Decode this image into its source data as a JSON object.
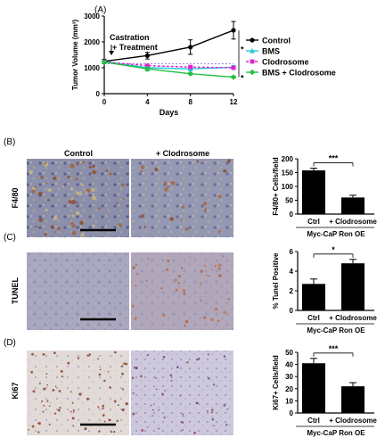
{
  "panels": {
    "a": "(A)",
    "b": "(B)",
    "c": "(C)",
    "d": "(D)"
  },
  "annotation": {
    "line1": "Castration",
    "line2": "+ Treatment"
  },
  "image_headers": {
    "control": "Control",
    "clodrosome": "+ Clodrosome"
  },
  "row_labels": {
    "b": "F4/80",
    "c": "TUNEL",
    "d": "Ki67"
  },
  "micrograph_colors": {
    "f480_control": "#8a8aa6",
    "f480_clod": "#9694b0",
    "tunel_control": "#a9a6bc",
    "tunel_clod": "#b7a9b9",
    "ki67_control": "#ddd6d4",
    "ki67_clod": "#c9c4d8"
  },
  "chart_data": [
    {
      "type": "line",
      "xlabel": "Days",
      "ylabel": "Tumor Volume (mm³)",
      "x": [
        0,
        4,
        8,
        12
      ],
      "xlim": [
        0,
        12
      ],
      "ylim": [
        0,
        3000
      ],
      "xticks": [
        "0",
        "4",
        "8",
        "12"
      ],
      "yticks": [
        "0",
        "1000",
        "2000",
        "3000"
      ],
      "series": [
        {
          "name": "Control",
          "color": "#000000",
          "marker": "circle",
          "dash": false,
          "values": [
            1250,
            1470,
            1800,
            2450
          ],
          "errors": [
            80,
            130,
            280,
            340
          ]
        },
        {
          "name": "BMS",
          "color": "#22c8d8",
          "marker": "triangle",
          "dash": false,
          "values": [
            1240,
            1000,
            960,
            1020
          ],
          "errors": [
            60,
            120,
            80,
            70
          ]
        },
        {
          "name": "Clodrosome",
          "color": "#e020d0",
          "marker": "square",
          "dash": true,
          "values": [
            1230,
            1080,
            1030,
            1000
          ],
          "errors": [
            50,
            60,
            50,
            50
          ]
        },
        {
          "name": "BMS + Clodrosome",
          "color": "#22c040",
          "marker": "diamond",
          "dash": false,
          "values": [
            1220,
            960,
            770,
            640
          ],
          "errors": [
            50,
            80,
            40,
            40
          ]
        }
      ],
      "significance": [
        "*",
        "*"
      ],
      "legend_position": "right"
    },
    {
      "type": "bar",
      "ylabel": "F4/80+ Cells/field",
      "categories": [
        "Ctrl",
        "+ Clodrosome"
      ],
      "values": [
        158,
        60
      ],
      "errors": [
        8,
        8
      ],
      "ylim": [
        0,
        200
      ],
      "yticks": [
        "0",
        "50",
        "100",
        "150",
        "200"
      ],
      "significance": "***",
      "group_label": "Myc-CaP Ron OE"
    },
    {
      "type": "bar",
      "ylabel": "% Tunel Positive",
      "categories": [
        "Ctrl",
        "+ Clodrosome"
      ],
      "values": [
        2.7,
        4.8
      ],
      "errors": [
        0.5,
        0.4
      ],
      "ylim": [
        0,
        6
      ],
      "yticks": [
        "0",
        "2",
        "4",
        "6"
      ],
      "significance": "*",
      "group_label": "Myc-CaP Ron OE"
    },
    {
      "type": "bar",
      "ylabel": "Ki67+ Cells/field",
      "categories": [
        "Ctrl",
        "+ Clodrosome"
      ],
      "values": [
        41,
        22
      ],
      "errors": [
        4,
        3
      ],
      "ylim": [
        0,
        50
      ],
      "yticks": [
        "0",
        "10",
        "20",
        "30",
        "40",
        "50"
      ],
      "significance": "***",
      "group_label": "Myc-CaP Ron OE"
    }
  ]
}
